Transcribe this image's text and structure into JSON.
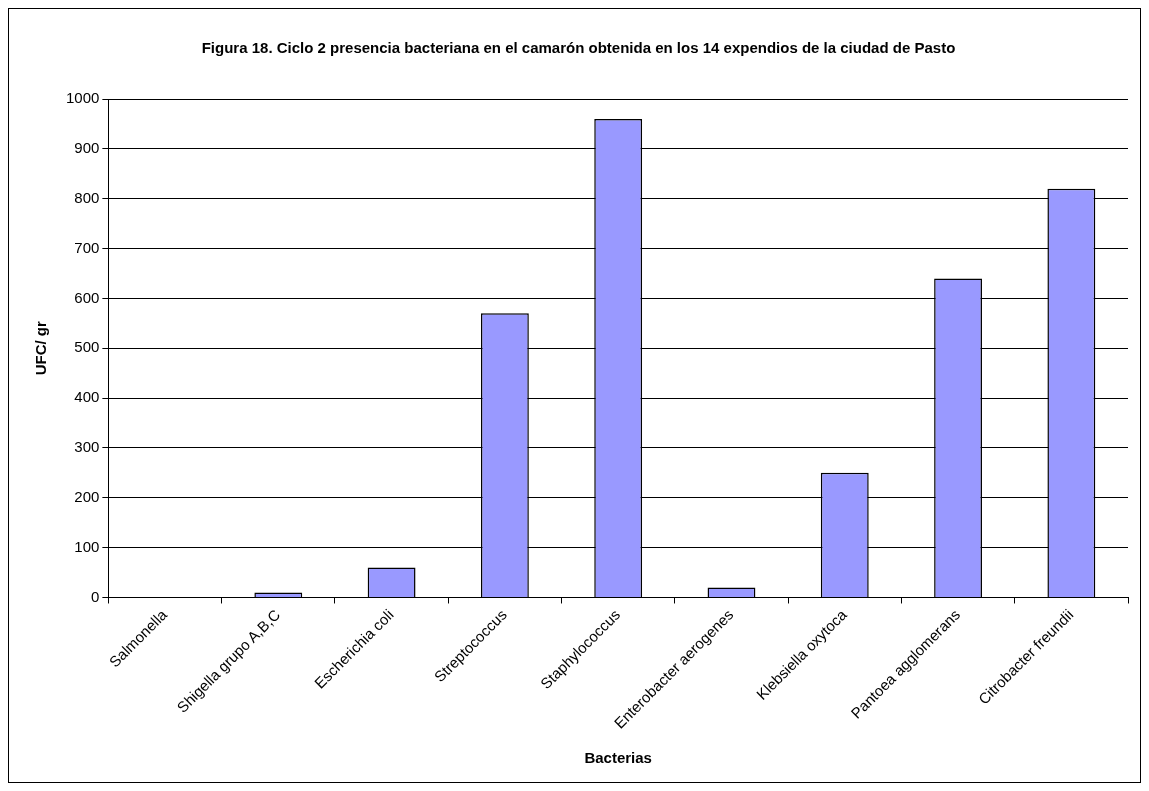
{
  "chart_data": {
    "type": "bar",
    "title": "Figura 18. Ciclo 2 presencia bacteriana en el camarón obtenida en los 14 expendios de la ciudad de Pasto",
    "xlabel": "Bacterias",
    "ylabel": "UFC/ gr",
    "categories": [
      "Salmonella",
      "Shigella grupo A,B,C",
      "Escherichia coli",
      "Streptococcus",
      "Staphylococcus",
      "Enterobacter aerogenes",
      "Klebsiella oxytoca",
      "Pantoea agglomerans",
      "Citrobacter freundii"
    ],
    "values": [
      0,
      10,
      60,
      570,
      960,
      20,
      250,
      640,
      820
    ],
    "color": "#9999ff",
    "ylim": [
      0,
      1000
    ],
    "yticks": [
      0,
      100,
      200,
      300,
      400,
      500,
      600,
      700,
      800,
      900,
      1000
    ],
    "grid": "y",
    "legend": false
  }
}
